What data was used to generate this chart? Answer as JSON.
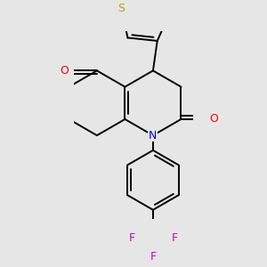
{
  "background_color": "#e6e6e6",
  "bond_color": "#000000",
  "atom_colors": {
    "N": "#0000ee",
    "O": "#ff0000",
    "S": "#aaaa00",
    "F": "#cc00cc",
    "C": "#000000"
  },
  "figsize": [
    3.0,
    3.0
  ],
  "dpi": 100,
  "bond_lw": 1.4
}
